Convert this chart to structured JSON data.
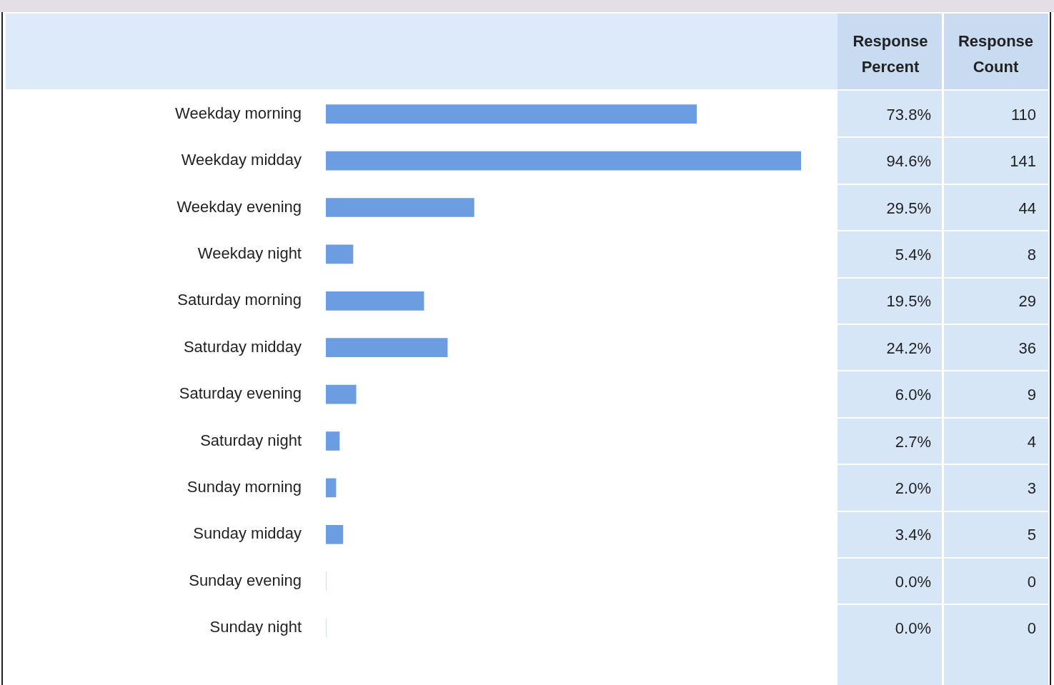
{
  "chart_data": {
    "type": "bar",
    "orientation": "horizontal",
    "color": "#6b9de0",
    "categories": [
      "Weekday morning",
      "Weekday midday",
      "Weekday evening",
      "Weekday night",
      "Saturday morning",
      "Saturday midday",
      "Saturday evening",
      "Saturday night",
      "Sunday morning",
      "Sunday midday",
      "Sunday evening",
      "Sunday night"
    ],
    "values": [
      73.8,
      94.6,
      29.5,
      5.4,
      19.5,
      24.2,
      6.0,
      2.7,
      2.0,
      3.4,
      0.0,
      0.0
    ],
    "value_labels": [
      "73.8%",
      "94.6%",
      "29.5%",
      "5.4%",
      "19.5%",
      "24.2%",
      "6.0%",
      "2.7%",
      "2.0%",
      "3.4%",
      "0.0%",
      "0.0%"
    ],
    "annotations": [
      "Response Percent",
      "Response Count",
      "110",
      "141",
      "44",
      "8",
      "29",
      "36",
      "9",
      "4",
      "3",
      "5",
      "0",
      "0"
    ],
    "grid": false,
    "legend": false
  }
}
